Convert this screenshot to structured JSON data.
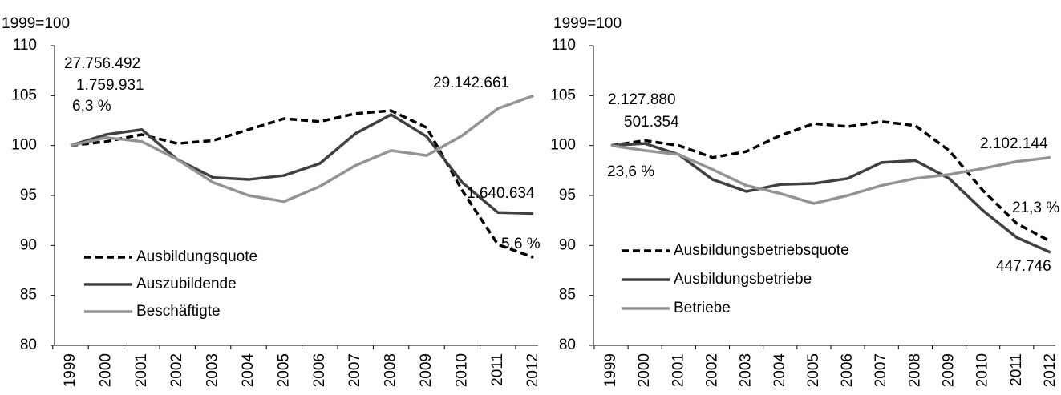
{
  "chart_data": [
    {
      "type": "line",
      "y_label": "1999=100",
      "categories": [
        "1999",
        "2000",
        "2001",
        "2002",
        "2003",
        "2004",
        "2005",
        "2006",
        "2007",
        "2008",
        "2009",
        "2010",
        "2011",
        "2012"
      ],
      "ylim": [
        80,
        110
      ],
      "yticks": [
        80,
        85,
        90,
        95,
        100,
        105,
        110
      ],
      "legend": "lower left",
      "series": [
        {
          "name": "Ausbildungsquote",
          "color": "#000000",
          "line_style": "dashed",
          "values": [
            100,
            100.4,
            101.1,
            100.2,
            100.5,
            101.6,
            102.7,
            102.4,
            103.2,
            103.5,
            101.8,
            95.5,
            90.1,
            88.8
          ]
        },
        {
          "name": "Auszubildende",
          "color": "#404040",
          "line_style": "solid",
          "values": [
            100,
            101.1,
            101.6,
            98.6,
            96.8,
            96.6,
            97.0,
            98.2,
            101.2,
            103.1,
            100.9,
            96.3,
            93.3,
            93.2
          ]
        },
        {
          "name": "Beschäftigte",
          "color": "#939393",
          "line_style": "solid",
          "values": [
            100,
            100.8,
            100.4,
            98.6,
            96.3,
            95.0,
            94.4,
            95.9,
            98.0,
            99.5,
            99.0,
            101.0,
            103.7,
            105.0
          ]
        }
      ],
      "annotations": [
        "27.756.492",
        "1.759.931",
        "6,3 %",
        "29.142.661",
        "1.640.634",
        "5,6 %"
      ]
    },
    {
      "type": "line",
      "y_label": "1999=100",
      "categories": [
        "1999",
        "2000",
        "2001",
        "2002",
        "2003",
        "2004",
        "2005",
        "2006",
        "2007",
        "2008",
        "2009",
        "2010",
        "2011",
        "2012"
      ],
      "ylim": [
        80,
        110
      ],
      "yticks": [
        80,
        85,
        90,
        95,
        100,
        105,
        110
      ],
      "legend": "lower left",
      "series": [
        {
          "name": "Ausbildungsbetriebsquote",
          "color": "#000000",
          "line_style": "dashed",
          "values": [
            100,
            100.5,
            100.0,
            98.8,
            99.4,
            101.0,
            102.2,
            101.9,
            102.4,
            102.0,
            99.5,
            95.5,
            92.2,
            90.4
          ]
        },
        {
          "name": "Ausbildungsbetriebe",
          "color": "#404040",
          "line_style": "solid",
          "values": [
            100,
            100.2,
            99.1,
            96.6,
            95.4,
            96.1,
            96.2,
            96.7,
            98.3,
            98.5,
            96.7,
            93.5,
            90.8,
            89.3
          ]
        },
        {
          "name": "Betriebe",
          "color": "#939393",
          "line_style": "solid",
          "values": [
            100,
            99.5,
            99.1,
            97.6,
            96.0,
            95.2,
            94.2,
            95.0,
            96.0,
            96.7,
            97.1,
            97.7,
            98.4,
            98.8
          ]
        }
      ],
      "annotations": [
        "2.127.880",
        "501.354",
        "23,6 %",
        "2.102.144",
        "21,3 %",
        "447.746"
      ]
    }
  ]
}
